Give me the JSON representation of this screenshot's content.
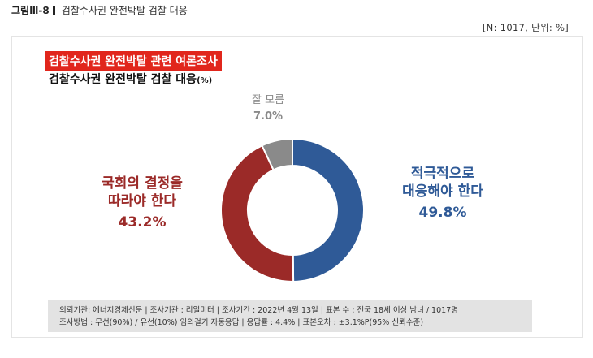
{
  "figure": {
    "number": "그림Ⅲ-8",
    "caption": "검찰수사권 완전박탈 검찰 대응",
    "note": "[N: 1017, 단위: %]"
  },
  "panel": {
    "title_highlight": "검찰수사권 완전박탈 관련 여론조사",
    "title": "검찰수사권 완전박탈 검찰 대응",
    "title_unit": "(%)"
  },
  "chart_data": {
    "type": "donut",
    "unit": "%",
    "slices": [
      {
        "label_lines": [
          "적극적으로",
          "대응해야 한다"
        ],
        "value": 49.8,
        "value_text": "49.8%",
        "color": "#2f5a97"
      },
      {
        "label_lines": [
          "국회의 결정을",
          "따라야 한다"
        ],
        "value": 43.2,
        "value_text": "43.2%",
        "color": "#9b2a28"
      },
      {
        "label_lines": [
          "잘 모름"
        ],
        "value": 7.0,
        "value_text": "7.0%",
        "color": "#8a8a8a"
      }
    ]
  },
  "footer": {
    "line1": "의뢰기관: 에너지경제신문 | 조사기관 : 리얼미터 | 조사기간 : 2022년 4월 13일 | 표본 수 : 전국 18세 이상 남녀 / 1017명",
    "line2": "조사방법 : 무선(90%) / 유선(10%) 임의걸기 자동응답 | 응답률 : 4.4% | 표본오차 : ±3.1%P(95% 신뢰수준)"
  }
}
